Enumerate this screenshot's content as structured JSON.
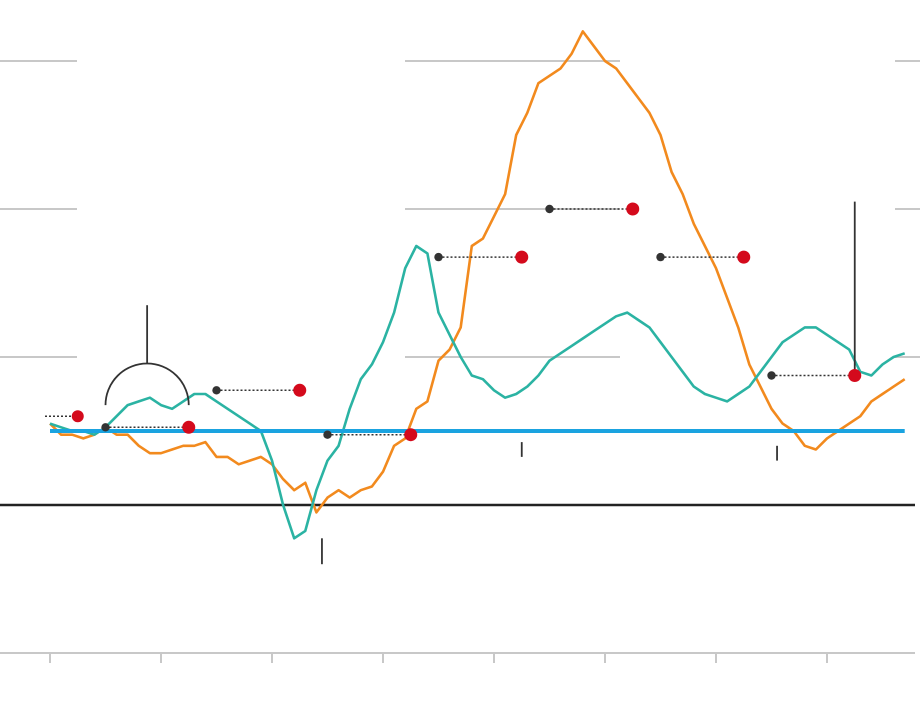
{
  "chart_data": {
    "type": "line",
    "title": "",
    "xlabel": "",
    "ylabel": "",
    "xlim": [
      0,
      77
    ],
    "ylim": [
      -2,
      8
    ],
    "x_tick_values": [
      0,
      10,
      20,
      30,
      40,
      50,
      60,
      70
    ],
    "gridlines": [
      2,
      4,
      6
    ],
    "zero_line": 0,
    "reference_level": 1.0,
    "colors": {
      "orange": "#f28a1e",
      "teal": "#2bb3a3",
      "reference": "#1aa3e0",
      "grid": "#c8c8c8",
      "axis": "#222222",
      "marker_red": "#d40a1c",
      "marker_dark": "#333333"
    },
    "series": [
      {
        "color": "orange",
        "x": [
          0,
          1,
          2,
          3,
          4,
          5,
          6,
          7,
          8,
          9,
          10,
          11,
          12,
          13,
          14,
          15,
          16,
          17,
          18,
          19,
          20,
          21,
          22,
          23,
          24,
          25,
          26,
          27,
          28,
          29,
          30,
          31,
          32,
          33,
          34,
          35,
          36,
          37,
          38,
          39,
          40,
          41,
          42,
          43,
          44,
          45,
          46,
          47,
          48,
          49,
          50,
          51,
          52,
          53,
          54,
          55,
          56,
          57,
          58,
          59,
          60,
          61,
          62,
          63,
          64,
          65,
          66,
          67,
          68,
          69,
          70,
          71,
          72,
          73,
          74,
          75,
          76,
          77
        ],
        "y": [
          1.1,
          0.95,
          0.95,
          0.9,
          0.95,
          1.05,
          0.95,
          0.95,
          0.8,
          0.7,
          0.7,
          0.75,
          0.8,
          0.8,
          0.85,
          0.65,
          0.65,
          0.55,
          0.6,
          0.65,
          0.55,
          0.35,
          0.2,
          0.3,
          -0.1,
          0.1,
          0.2,
          0.1,
          0.2,
          0.25,
          0.45,
          0.8,
          0.9,
          1.3,
          1.4,
          1.95,
          2.1,
          2.4,
          3.5,
          3.6,
          3.9,
          4.2,
          5.0,
          5.3,
          5.7,
          5.8,
          5.9,
          6.1,
          6.4,
          6.2,
          6.0,
          5.9,
          5.7,
          5.5,
          5.3,
          5.0,
          4.5,
          4.2,
          3.8,
          3.5,
          3.2,
          2.8,
          2.4,
          1.9,
          1.6,
          1.3,
          1.1,
          1.0,
          0.8,
          0.75,
          0.9,
          1.0,
          1.1,
          1.2,
          1.4,
          1.5,
          1.6,
          1.7
        ]
      },
      {
        "color": "teal",
        "x": [
          0,
          1,
          2,
          3,
          4,
          5,
          6,
          7,
          8,
          9,
          10,
          11,
          12,
          13,
          14,
          15,
          16,
          17,
          18,
          19,
          20,
          21,
          22,
          23,
          24,
          25,
          26,
          27,
          28,
          29,
          30,
          31,
          32,
          33,
          34,
          35,
          36,
          37,
          38,
          39,
          40,
          41,
          42,
          43,
          44,
          45,
          46,
          47,
          48,
          49,
          50,
          51,
          52,
          53,
          54,
          55,
          56,
          57,
          58,
          59,
          60,
          61,
          62,
          63,
          64,
          65,
          66,
          67,
          68,
          69,
          70,
          71,
          72,
          73,
          74,
          75,
          76,
          77
        ],
        "y": [
          1.1,
          1.05,
          1.0,
          1.0,
          0.95,
          1.05,
          1.2,
          1.35,
          1.4,
          1.45,
          1.35,
          1.3,
          1.4,
          1.5,
          1.5,
          1.4,
          1.3,
          1.2,
          1.1,
          1.0,
          0.6,
          0.0,
          -0.45,
          -0.35,
          0.2,
          0.6,
          0.8,
          1.3,
          1.7,
          1.9,
          2.2,
          2.6,
          3.2,
          3.5,
          3.4,
          2.6,
          2.3,
          2.0,
          1.75,
          1.7,
          1.55,
          1.45,
          1.5,
          1.6,
          1.75,
          1.95,
          2.05,
          2.15,
          2.25,
          2.35,
          2.45,
          2.55,
          2.6,
          2.5,
          2.4,
          2.2,
          2.0,
          1.8,
          1.6,
          1.5,
          1.45,
          1.4,
          1.5,
          1.6,
          1.8,
          2.0,
          2.2,
          2.3,
          2.4,
          2.4,
          2.3,
          2.2,
          2.1,
          1.8,
          1.75,
          1.9,
          2.0,
          2.05
        ]
      },
      {
        "color": "reference",
        "x": [
          0,
          77
        ],
        "y": [
          1.0,
          1.0
        ]
      }
    ],
    "marker_pairs": [
      {
        "x_start": 5,
        "x_end": 12.5,
        "y": 1.05
      },
      {
        "x_start": 15,
        "x_end": 22.5,
        "y": 1.55
      },
      {
        "x_start": 25,
        "x_end": 32.5,
        "y": 0.95
      },
      {
        "x_start": 35,
        "x_end": 42.5,
        "y": 3.35
      },
      {
        "x_start": 45,
        "x_end": 52.5,
        "y": 4.0
      },
      {
        "x_start": 55,
        "x_end": 62.5,
        "y": 3.35
      },
      {
        "x_start": 65,
        "x_end": 72.5,
        "y": 1.75
      }
    ],
    "lone_red_dots": [
      {
        "x": 2.5,
        "y": 1.2
      }
    ],
    "tick_marks": [
      {
        "x": 24.5,
        "y_from": -0.45,
        "y_to": -0.8
      },
      {
        "x": 42.5,
        "y_from": 0.85,
        "y_to": 0.65
      },
      {
        "x": 65.5,
        "y_from": 0.8,
        "y_to": 0.6
      }
    ],
    "tall_tick": {
      "x": 72.5,
      "y_from": 1.75,
      "y_to": 4.1
    },
    "bracket": {
      "x_start": 5,
      "x_end": 12.5,
      "y_base": 1.35,
      "stem_top": 2.7
    }
  }
}
